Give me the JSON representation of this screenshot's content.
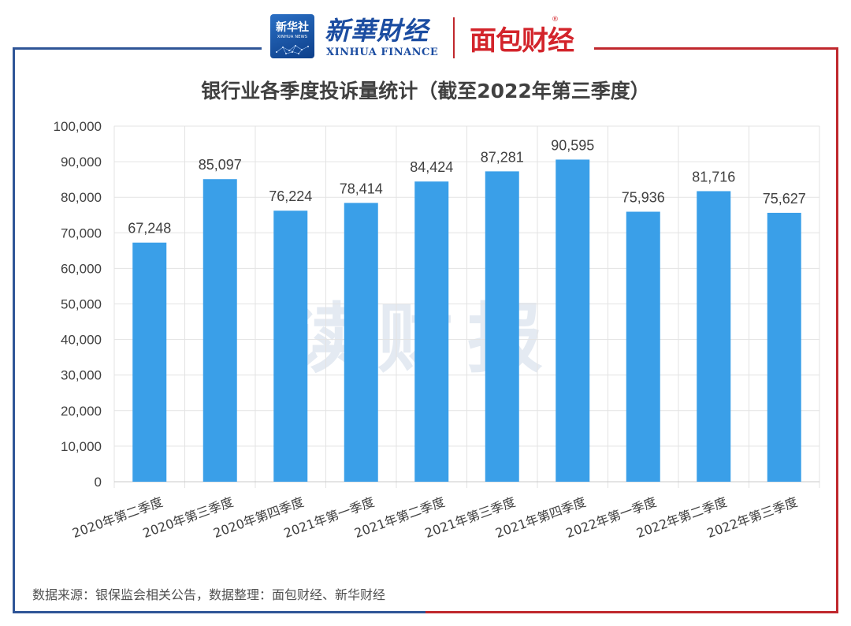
{
  "header": {
    "xinhua_badge_cn": "新华社",
    "xinhua_badge_en": "XINHUA NEWS",
    "xinhua_finance_cn": "新華財经",
    "xinhua_finance_en": "XINHUA FINANCE",
    "mianbao_logo": "面包财经",
    "registered_mark": "®"
  },
  "watermark": "读财报",
  "source": "数据来源：银保监会相关公告，数据整理：面包财经、新华财经",
  "colors": {
    "bar": "#3a9fe8",
    "frame_left": "#2f5597",
    "frame_right": "#c0282d",
    "grid": "#e3e3e3"
  },
  "chart_data": {
    "type": "bar",
    "title": "银行业各季度投诉量统计（截至2022年第三季度）",
    "categories": [
      "2020年第二季度",
      "2020年第三季度",
      "2020年第四季度",
      "2021年第一季度",
      "2021年第二季度",
      "2021年第三季度",
      "2021年第四季度",
      "2022年第一季度",
      "2022年第二季度",
      "2022年第三季度"
    ],
    "values": [
      67248,
      85097,
      76224,
      78414,
      84424,
      87281,
      90595,
      75936,
      81716,
      75627
    ],
    "value_labels": [
      "67,248",
      "85,097",
      "76,224",
      "78,414",
      "84,424",
      "87,281",
      "90,595",
      "75,936",
      "81,716",
      "75,627"
    ],
    "yticks": [
      0,
      10000,
      20000,
      30000,
      40000,
      50000,
      60000,
      70000,
      80000,
      90000,
      100000
    ],
    "ytick_labels": [
      "0",
      "10,000",
      "20,000",
      "30,000",
      "40,000",
      "50,000",
      "60,000",
      "70,000",
      "80,000",
      "90,000",
      "100,000"
    ],
    "ylim": [
      0,
      100000
    ],
    "grid": true,
    "legend": "none"
  }
}
